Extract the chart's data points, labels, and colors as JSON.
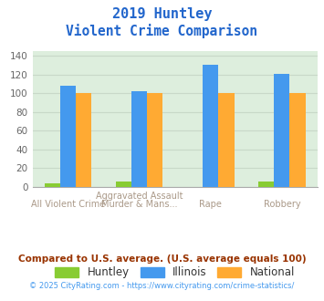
{
  "title_line1": "2019 Huntley",
  "title_line2": "Violent Crime Comparison",
  "cat_labels_top": [
    "",
    "Aggravated Assault",
    "",
    ""
  ],
  "cat_labels_bot": [
    "All Violent Crime",
    "Murder & Mans...",
    "Rape",
    "Robbery"
  ],
  "huntley": [
    4,
    5,
    0,
    5
  ],
  "illinois": [
    108,
    102,
    130,
    121
  ],
  "national": [
    100,
    100,
    100,
    100
  ],
  "huntley_color": "#88cc33",
  "illinois_color": "#4499ee",
  "national_color": "#ffaa33",
  "ylim": [
    0,
    145
  ],
  "yticks": [
    0,
    20,
    40,
    60,
    80,
    100,
    120,
    140
  ],
  "background_color": "#ddeedd",
  "grid_color": "#c8d8c8",
  "title_color": "#2266cc",
  "footer_text": "Compared to U.S. average. (U.S. average equals 100)",
  "copyright_text": "© 2025 CityRating.com - https://www.cityrating.com/crime-statistics/",
  "footer_color": "#993300",
  "copyright_color": "#4499ee",
  "label_color": "#aa9988",
  "legend_labels": [
    "Huntley",
    "Illinois",
    "National"
  ]
}
